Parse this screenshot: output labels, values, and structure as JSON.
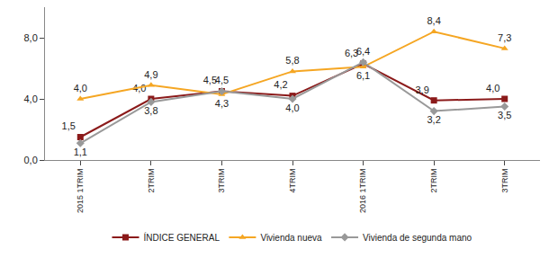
{
  "chart_data": {
    "type": "line",
    "categories": [
      "2015 1TRIM",
      "2TRIM",
      "3TRIM",
      "4TRIM",
      "2016 1TRIM",
      "2TRIM",
      "3TRIM"
    ],
    "series": [
      {
        "name": "ÍNDICE GENERAL",
        "color": "#8b1a1a",
        "marker": "square",
        "values": [
          1.5,
          4.0,
          4.5,
          4.2,
          6.3,
          3.9,
          4.0
        ],
        "value_labels": [
          "1,5",
          "4,0",
          "4,5",
          "4,2",
          "6,3",
          "3,9",
          "4,0"
        ]
      },
      {
        "name": "Vivienda nueva",
        "color": "#f5a623",
        "marker": "triangle-up",
        "values": [
          4.0,
          4.9,
          4.3,
          5.8,
          6.1,
          8.4,
          7.3
        ],
        "value_labels": [
          "4,0",
          "4,9",
          "4,3",
          "5,8",
          "6,1",
          "8,4",
          "7,3"
        ]
      },
      {
        "name": "Vivienda de segunda mano",
        "color": "#999999",
        "marker": "diamond",
        "values": [
          1.1,
          3.8,
          4.5,
          4.0,
          6.4,
          3.2,
          3.5
        ],
        "value_labels": [
          "1,1",
          "3,8",
          "4,5",
          "4,0",
          "6,4",
          "3,2",
          "3,5"
        ]
      }
    ],
    "ylim": [
      0,
      10
    ],
    "yticks": [
      {
        "value": 0,
        "label": "0,0"
      },
      {
        "value": 4,
        "label": "4,0"
      },
      {
        "value": 8,
        "label": "8,0"
      }
    ],
    "grid": false,
    "legend": "bottom",
    "data_labels": true
  }
}
